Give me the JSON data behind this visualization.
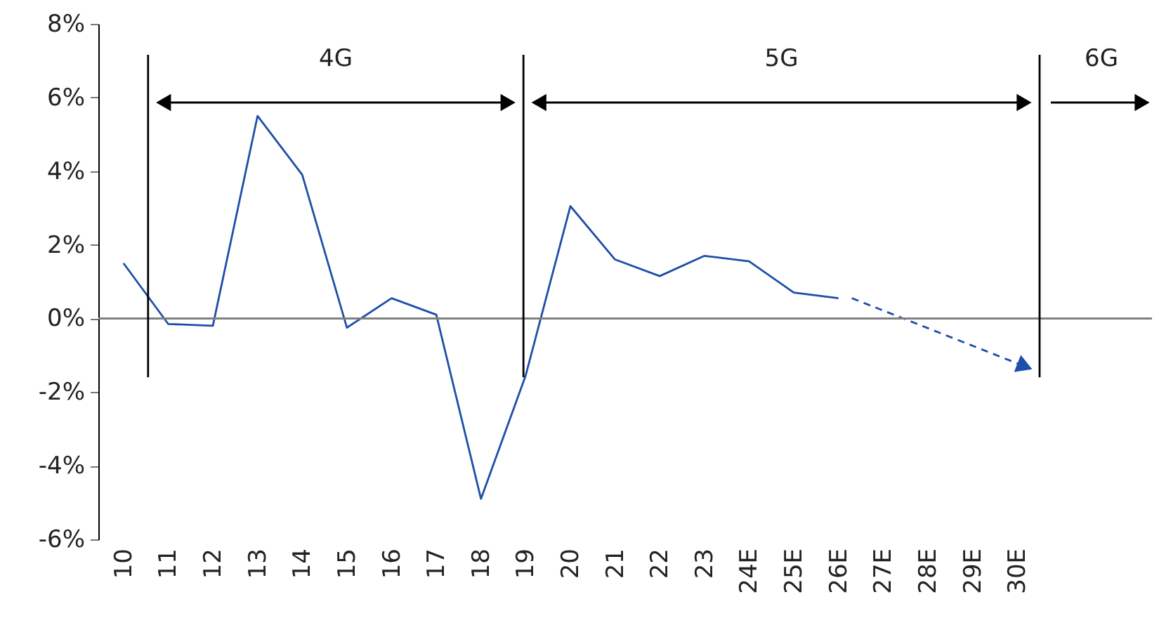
{
  "chart_data": {
    "type": "line",
    "categories": [
      "10",
      "11",
      "12",
      "13",
      "14",
      "15",
      "16",
      "17",
      "18",
      "19",
      "20",
      "21",
      "22",
      "23",
      "24E",
      "25E",
      "26E",
      "27E",
      "28E",
      "29E",
      "30E"
    ],
    "series": [
      {
        "color": "#1f4fa8",
        "line_style": "solid",
        "values": [
          1.5,
          -0.15,
          -0.2,
          5.5,
          3.9,
          -0.25,
          0.55,
          0.1,
          -4.9,
          -1.55,
          3.05,
          1.6,
          1.15,
          1.7,
          1.55,
          0.7,
          0.55,
          null,
          null,
          null,
          null
        ]
      }
    ],
    "ylim": [
      -6,
      8
    ],
    "yticks": [
      {
        "value": -6,
        "label": "-6%"
      },
      {
        "value": -4,
        "label": "-4%"
      },
      {
        "value": -2,
        "label": "-2%"
      },
      {
        "value": 0,
        "label": "0%"
      },
      {
        "value": 2,
        "label": "2%"
      },
      {
        "value": 4,
        "label": "4%"
      },
      {
        "value": 6,
        "label": "6%"
      },
      {
        "value": 8,
        "label": "8%"
      }
    ],
    "ref_lines": [
      {
        "axis": "x",
        "value": "11",
        "color": "#000000"
      },
      {
        "axis": "x",
        "value": "19",
        "color": "#000000"
      },
      {
        "axis": "x",
        "value": "30E",
        "color": "#000000"
      },
      {
        "axis": "y",
        "value": 0,
        "color": "#808080"
      }
    ],
    "annotations": [
      "4G",
      "5G",
      "6G"
    ]
  }
}
